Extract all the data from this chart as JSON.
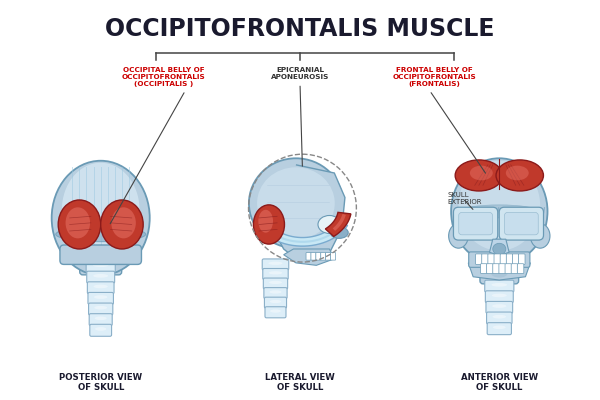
{
  "title": "OCCIPITOFRONTALIS MUSCLE",
  "title_fontsize": 17,
  "title_color": "#1a1a2e",
  "background_color": "#ffffff",
  "labels": {
    "occipital": "OCCIPITAL BELLY OF\nOCCIPITOFRONTALIS\n(OCCIPITALIS )",
    "epicranial": "EPICRANIAL\nAPONEUROSIS",
    "frontal": "FRONTAL BELLY OF\nOCCIPITOFRONTALIS\n(FRONTALIS)",
    "skull_exterior": "SKULL\nEXTERIOR",
    "posterior": "POSTERIOR VIEW\nOF SKULL",
    "lateral": "LATERAL VIEW\nOF SKULL",
    "anterior": "ANTERIOR VIEW\nOF SKULL"
  },
  "label_colors": {
    "occipital": "#cc0000",
    "epicranial": "#333333",
    "frontal": "#cc0000",
    "skull_exterior": "#333333",
    "view": "#1a1a2e"
  },
  "skull_fill": "#b8cfe0",
  "skull_dark": "#8aafc8",
  "skull_light": "#d8eaf5",
  "skull_stroke": "#6a9ab5",
  "muscle_fill": "#c0392b",
  "muscle_stroke": "#8b1a1a",
  "muscle_highlight": "#e8756a",
  "spine_fill": "#ddeef8",
  "spine_stroke": "#8aafc8",
  "aponeurosis_fill": "#c8e8f5",
  "aponeurosis_stroke": "#7aabcf",
  "bracket_color": "#444444",
  "line_color": "#444444",
  "white": "#ffffff"
}
